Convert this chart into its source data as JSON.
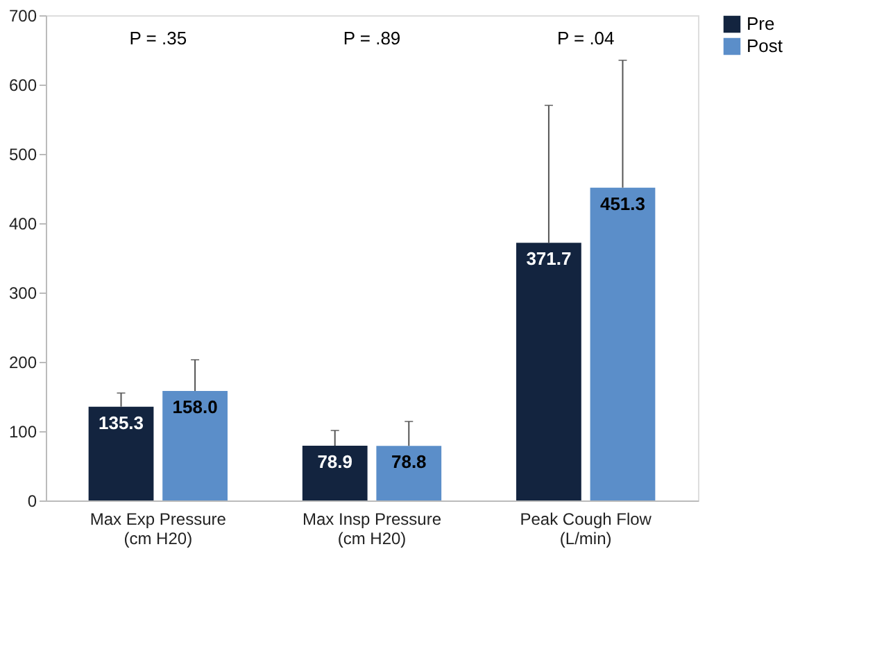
{
  "chart_data": {
    "type": "bar",
    "categories": [
      "Max Exp Pressure\n(cm H20)",
      "Max Insp Pressure\n(cm H20)",
      "Peak Cough Flow\n(L/min)"
    ],
    "series": [
      {
        "name": "Pre",
        "color": "#13243f",
        "values": [
          135.3,
          78.9,
          371.7
        ],
        "value_labels": [
          "135.3",
          "78.9",
          "371.7"
        ],
        "errors": [
          [
            135.3,
            155
          ],
          [
            78.9,
            101
          ],
          [
            371.7,
            570
          ]
        ]
      },
      {
        "name": "Post",
        "color": "#5b8ec9",
        "values": [
          158.0,
          78.8,
          451.3
        ],
        "value_labels": [
          "158.0",
          "78.8",
          "451.3"
        ],
        "errors": [
          [
            158.0,
            203
          ],
          [
            78.8,
            114
          ],
          [
            451.3,
            635
          ]
        ]
      }
    ],
    "ylim": [
      0,
      700
    ],
    "yticks": [
      0,
      100,
      200,
      300,
      400,
      500,
      600,
      700
    ],
    "grid": false,
    "legend": "right",
    "annotations": [
      "P = .35",
      "P = .89",
      "P = .04"
    ]
  }
}
